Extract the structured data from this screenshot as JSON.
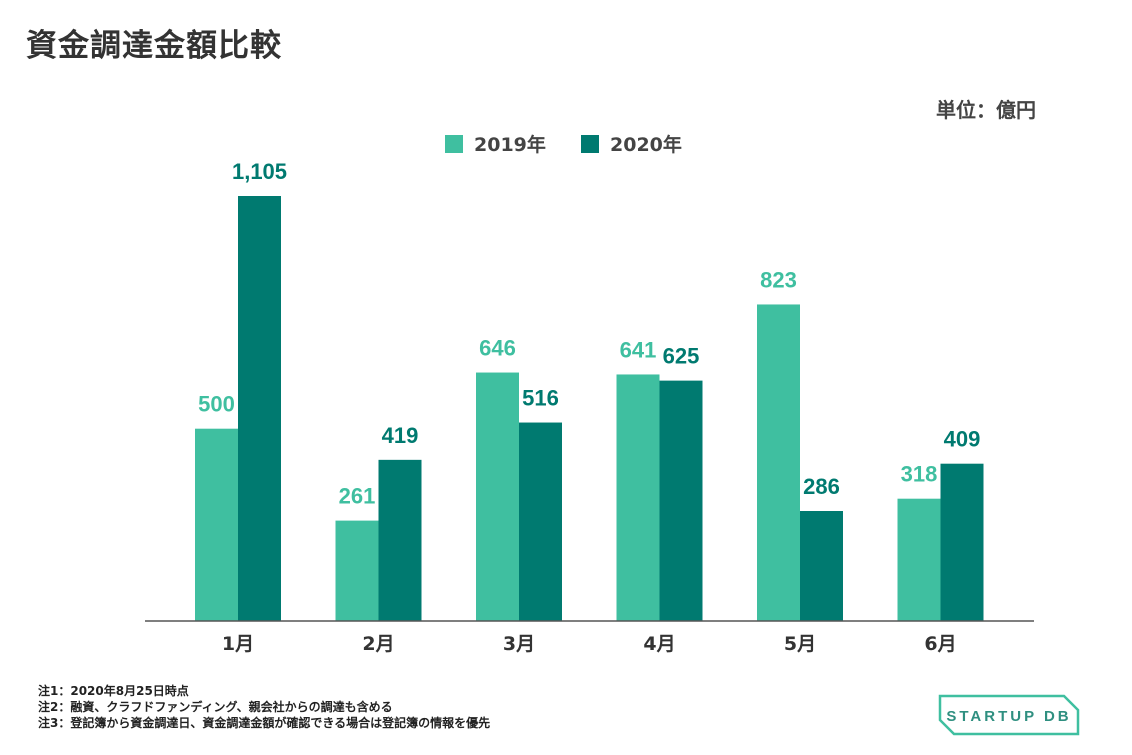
{
  "title": "資金調達金額比較",
  "unit_label": "単位：億円",
  "colors": {
    "series_2019": "#3fbfa0",
    "series_2020": "#007a70",
    "axis": "#555555",
    "text": "#333333"
  },
  "chart_data": {
    "type": "bar",
    "categories": [
      "1月",
      "2月",
      "3月",
      "4月",
      "5月",
      "6月"
    ],
    "series": [
      {
        "name": "2019年",
        "values": [
          500,
          261,
          646,
          641,
          823,
          318
        ],
        "labels": [
          "500",
          "261",
          "646",
          "641",
          "823",
          "318"
        ]
      },
      {
        "name": "2020年",
        "values": [
          1105,
          419,
          516,
          625,
          286,
          409
        ],
        "labels": [
          "1,105",
          "419",
          "516",
          "625",
          "286",
          "409"
        ]
      }
    ],
    "title": "資金調達金額比較",
    "ylabel": "単位：億円",
    "ylim": [
      0,
      1160
    ],
    "grid": false,
    "legend": "top-center"
  },
  "notes": [
    "注1：2020年8月25日時点",
    "注2：融資、クラフドファンディング、親会社からの調達も含める",
    "注3：登記簿から資金調達日、資金調達金額が確認できる場合は登記簿の情報を優先"
  ],
  "logo": {
    "text": "STARTUP DB"
  }
}
